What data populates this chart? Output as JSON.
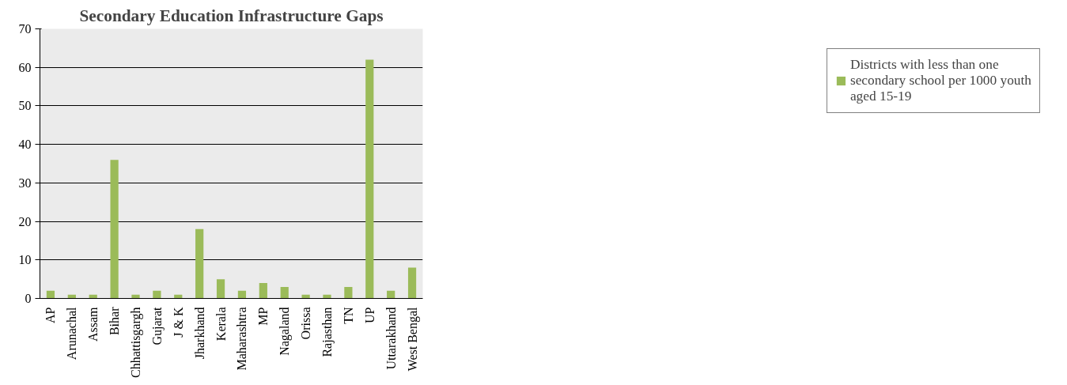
{
  "chart_data": {
    "type": "bar",
    "title": "Secondary Education Infrastructure Gaps",
    "categories": [
      "AP",
      "Arunachal",
      "Assam",
      "Bihar",
      "Chhattisgargh",
      "Gujarat",
      "J & K",
      "Jharkhand",
      "Kerala",
      "Maharashtra",
      "MP",
      "Nagaland",
      "Orissa",
      "Rajasthan",
      "TN",
      "UP",
      "Uttarakhand",
      "West Bengal"
    ],
    "series": [
      {
        "name": "Districts with less than one secondary school per 1000 youth aged 15-19",
        "color": "#9bbb59",
        "values": [
          2,
          1,
          1,
          36,
          1,
          2,
          1,
          18,
          5,
          2,
          4,
          3,
          1,
          1,
          3,
          62,
          2,
          8
        ]
      }
    ],
    "ylim": [
      0,
      70
    ],
    "yticks": [
      0,
      10,
      20,
      30,
      40,
      50,
      60,
      70
    ],
    "grid": "y",
    "legend": "right"
  }
}
